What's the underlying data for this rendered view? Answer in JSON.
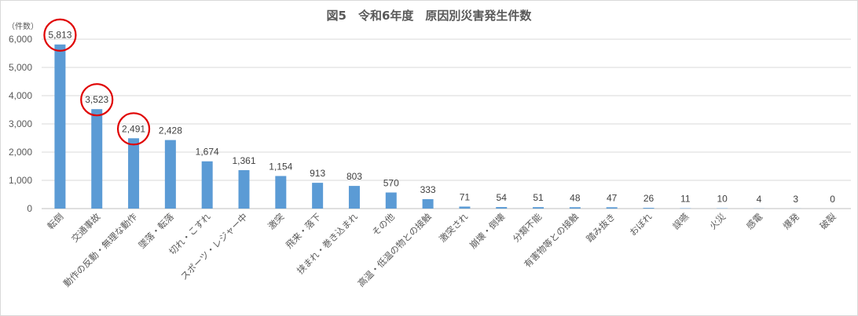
{
  "chart_data": {
    "type": "bar",
    "title": "図5　令和6年度　原因別災害発生件数",
    "ylabel": "（件数）",
    "ylim": [
      0,
      6000
    ],
    "yticks": [
      "0",
      "1,000",
      "2,000",
      "3,000",
      "4,000",
      "5,000",
      "6,000"
    ],
    "grid": true,
    "bar_color": "#5b9bd5",
    "highlight_color": "#e00000",
    "highlighted_categories": [
      "転倒",
      "交通事故",
      "動作の反動・無理な動作"
    ],
    "categories": [
      "転倒",
      "交通事故",
      "動作の反動・無理な動作",
      "墜落・転落",
      "切れ・こすれ",
      "スポーツ・レジャー中",
      "激突",
      "飛来・落下",
      "挟まれ・巻き込まれ",
      "その他",
      "高温・低温の物との接触",
      "激突され",
      "崩壊・倒壊",
      "分類不能",
      "有害物等との接触",
      "踏み抜き",
      "おぼれ",
      "誤嚥",
      "火災",
      "感電",
      "爆発",
      "破裂"
    ],
    "values": [
      5813,
      3523,
      2491,
      2428,
      1674,
      1361,
      1154,
      913,
      803,
      570,
      333,
      71,
      54,
      51,
      48,
      47,
      26,
      11,
      10,
      4,
      3,
      0
    ],
    "value_labels": [
      "5,813",
      "3,523",
      "2,491",
      "2,428",
      "1,674",
      "1,361",
      "1,154",
      "913",
      "803",
      "570",
      "333",
      "71",
      "54",
      "51",
      "48",
      "47",
      "26",
      "11",
      "10",
      "4",
      "3",
      "0"
    ]
  }
}
